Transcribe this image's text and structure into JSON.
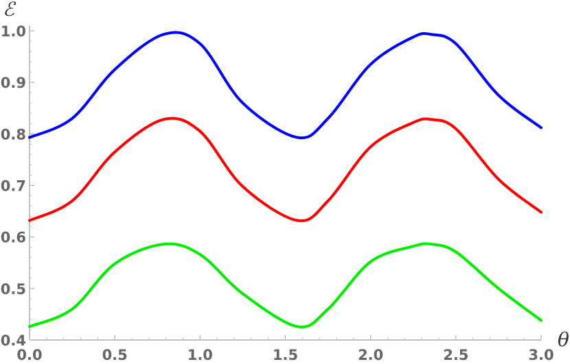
{
  "chart_data": {
    "type": "line",
    "xlabel": "θ",
    "ylabel": "ℰ",
    "xlim": [
      0,
      3
    ],
    "ylim": [
      0.4,
      1.0
    ],
    "xticks": [
      "0.0",
      "0.5",
      "1.0",
      "1.5",
      "2.0",
      "2.5",
      "3.0"
    ],
    "yticks": [
      "0.4",
      "0.5",
      "0.6",
      "0.7",
      "0.8",
      "0.9",
      "1.0"
    ],
    "grid": false,
    "series": [
      {
        "color": "#0000ff",
        "x": [
          0,
          0.25,
          0.5,
          0.785,
          1.0,
          1.25,
          1.571,
          1.75,
          2.0,
          2.25,
          2.356,
          2.5,
          2.75,
          3.0
        ],
        "y": [
          0.793,
          0.83,
          0.925,
          0.993,
          0.975,
          0.86,
          0.793,
          0.83,
          0.935,
          0.988,
          0.993,
          0.975,
          0.875,
          0.812
        ]
      },
      {
        "color": "#ff0000",
        "x": [
          0,
          0.25,
          0.5,
          0.785,
          1.0,
          1.25,
          1.571,
          1.75,
          2.0,
          2.25,
          2.356,
          2.5,
          2.75,
          3.0
        ],
        "y": [
          0.632,
          0.67,
          0.765,
          0.828,
          0.805,
          0.698,
          0.632,
          0.67,
          0.775,
          0.822,
          0.828,
          0.81,
          0.712,
          0.648
        ]
      },
      {
        "color": "#00ee00",
        "x": [
          0,
          0.25,
          0.5,
          0.785,
          1.0,
          1.25,
          1.571,
          1.75,
          2.0,
          2.25,
          2.356,
          2.5,
          2.75,
          3.0
        ],
        "y": [
          0.426,
          0.46,
          0.548,
          0.586,
          0.566,
          0.49,
          0.426,
          0.46,
          0.552,
          0.582,
          0.586,
          0.571,
          0.5,
          0.438
        ]
      }
    ]
  }
}
